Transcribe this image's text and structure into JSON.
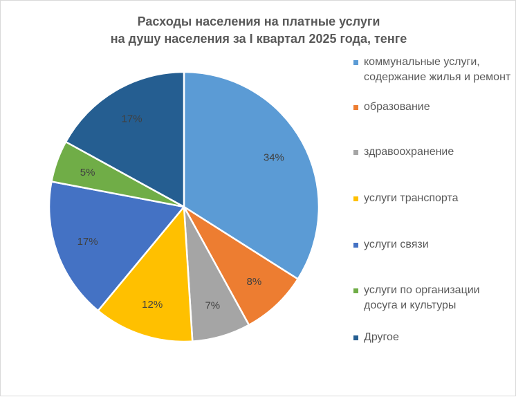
{
  "chart_data": {
    "type": "pie",
    "title": [
      "Расходы населения на платные услуги",
      "на душу населения за I квартал 2025 года, тенге"
    ],
    "legend_position": "right",
    "slices": [
      {
        "name": "коммунальные услуги, содержание жилья и ремонт",
        "label": "34%",
        "value": 34,
        "color": "#5b9bd5"
      },
      {
        "name": "образование",
        "label": "8%",
        "value": 8,
        "color": "#ed7d31"
      },
      {
        "name": "здравоохранение",
        "label": "7%",
        "value": 7,
        "color": "#a5a5a5"
      },
      {
        "name": "услуги транспорта",
        "label": "12%",
        "value": 12,
        "color": "#ffc000"
      },
      {
        "name": "услуги связи",
        "label": "17%",
        "value": 17,
        "color": "#4472c4"
      },
      {
        "name": "услуги по организации досуга и культуры",
        "label": "5%",
        "value": 5,
        "color": "#70ad47"
      },
      {
        "name": "Другое",
        "label": "17%",
        "value": 17,
        "color": "#255e91"
      }
    ]
  }
}
